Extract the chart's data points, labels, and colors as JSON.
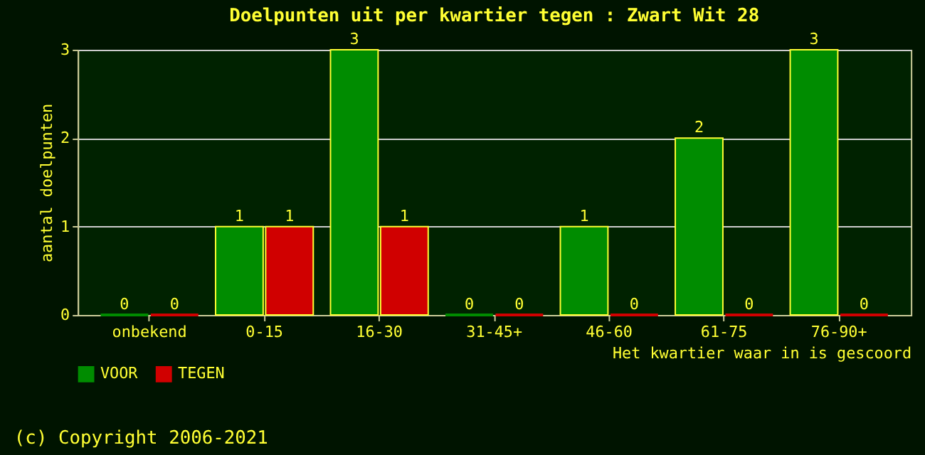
{
  "chart_data": {
    "type": "bar",
    "title": "Doelpunten uit per kwartier tegen : Zwart Wit 28",
    "categories": [
      "onbekend",
      "0-15",
      "16-30",
      "31-45+",
      "46-60",
      "61-75",
      "76-90+"
    ],
    "series": [
      {
        "name": "VOOR",
        "color": "#008c00",
        "values": [
          0,
          1,
          3,
          0,
          1,
          2,
          3
        ]
      },
      {
        "name": "TEGEN",
        "color": "#d00000",
        "values": [
          0,
          1,
          1,
          0,
          0,
          0,
          0
        ]
      }
    ],
    "ylim": [
      0,
      3
    ],
    "yticks": [
      0,
      1,
      2,
      3
    ],
    "grid": "y",
    "legend": "bottom",
    "data_labels": true,
    "ylabel": "aantal doelpunten",
    "xlabel": "Het kwartier waar in is gescoord",
    "annotations": [
      "(c) Copyright 2006-2021"
    ]
  }
}
